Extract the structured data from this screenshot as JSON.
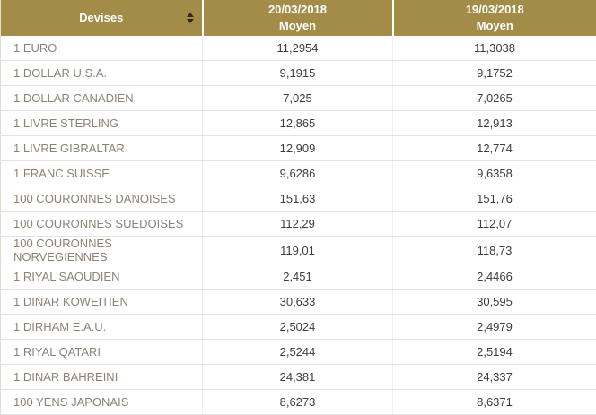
{
  "table": {
    "colors": {
      "header_bg": "#a28c48",
      "header_text": "#ffffff",
      "label_text": "#8d8274",
      "value_text": "#3d3d3c"
    },
    "header": {
      "devises_label": "Devises",
      "sort_icon": "sort-arrows-icon",
      "col1_date": "20/03/2018",
      "col1_sub": "Moyen",
      "col2_date": "19/03/2018",
      "col2_sub": "Moyen"
    },
    "rows": [
      {
        "devise": "1 EURO",
        "moyen_20_03_2018": "11,2954",
        "moyen_19_03_2018": "11,3038"
      },
      {
        "devise": "1 DOLLAR U.S.A.",
        "moyen_20_03_2018": "9,1915",
        "moyen_19_03_2018": "9,1752"
      },
      {
        "devise": "1 DOLLAR CANADIEN",
        "moyen_20_03_2018": "7,025",
        "moyen_19_03_2018": "7,0265"
      },
      {
        "devise": "1 LIVRE STERLING",
        "moyen_20_03_2018": "12,865",
        "moyen_19_03_2018": "12,913"
      },
      {
        "devise": "1 LIVRE GIBRALTAR",
        "moyen_20_03_2018": "12,909",
        "moyen_19_03_2018": "12,774"
      },
      {
        "devise": "1 FRANC SUISSE",
        "moyen_20_03_2018": "9,6286",
        "moyen_19_03_2018": "9,6358"
      },
      {
        "devise": "100 COURONNES DANOISES",
        "moyen_20_03_2018": "151,63",
        "moyen_19_03_2018": "151,76"
      },
      {
        "devise": "100 COURONNES SUEDOISES",
        "moyen_20_03_2018": "112,29",
        "moyen_19_03_2018": "112,07"
      },
      {
        "devise": "100 COURONNES NORVEGIENNES",
        "moyen_20_03_2018": "119,01",
        "moyen_19_03_2018": "118,73"
      },
      {
        "devise": "1 RIYAL SAOUDIEN",
        "moyen_20_03_2018": "2,451",
        "moyen_19_03_2018": "2,4466"
      },
      {
        "devise": "1 DINAR KOWEITIEN",
        "moyen_20_03_2018": "30,633",
        "moyen_19_03_2018": "30,595"
      },
      {
        "devise": "1 DIRHAM E.A.U.",
        "moyen_20_03_2018": "2,5024",
        "moyen_19_03_2018": "2,4979"
      },
      {
        "devise": "1 RIYAL QATARI",
        "moyen_20_03_2018": "2,5244",
        "moyen_19_03_2018": "2,5194"
      },
      {
        "devise": "1 DINAR BAHREINI",
        "moyen_20_03_2018": "24,381",
        "moyen_19_03_2018": "24,337"
      },
      {
        "devise": "100 YENS JAPONAIS",
        "moyen_20_03_2018": "8,6273",
        "moyen_19_03_2018": "8,6371"
      }
    ]
  }
}
